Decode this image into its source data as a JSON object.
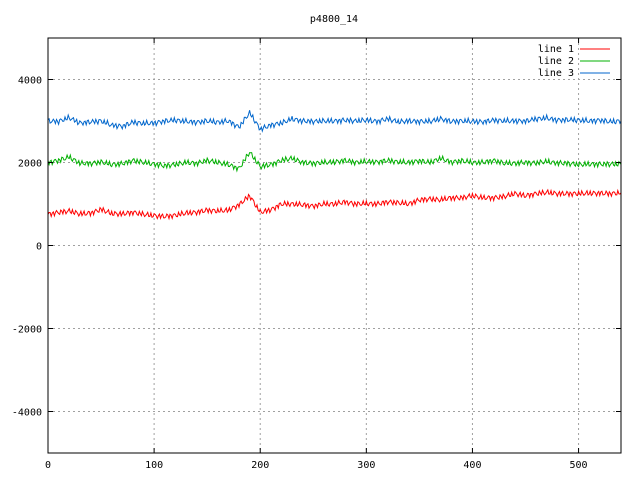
{
  "chart_data": {
    "type": "line",
    "title": "p4800_14",
    "xlabel": "",
    "ylabel": "",
    "xlim": [
      0,
      540
    ],
    "ylim": [
      -5000,
      5000
    ],
    "x_ticks": [
      0,
      100,
      200,
      300,
      400,
      500
    ],
    "x_tick_labels": [
      "0",
      "100",
      "200",
      "300",
      "400",
      "500"
    ],
    "y_ticks": [
      -4000,
      -2000,
      0,
      2000,
      4000
    ],
    "y_tick_labels": [
      "-4000",
      "-2000",
      "0",
      "2000",
      "4000"
    ],
    "grid": true,
    "legend_position": "top-right",
    "x_step": 10,
    "series": [
      {
        "name": "line 1",
        "color": "#ff0000",
        "values": [
          750,
          800,
          830,
          760,
          780,
          870,
          770,
          760,
          800,
          750,
          720,
          700,
          730,
          780,
          800,
          850,
          830,
          850,
          980,
          1200,
          800,
          860,
          1000,
          1000,
          980,
          950,
          1000,
          1000,
          1050,
          1000,
          1010,
          1000,
          1050,
          1030,
          1000,
          1100,
          1120,
          1100,
          1150,
          1150,
          1200,
          1150,
          1150,
          1180,
          1250,
          1200,
          1250,
          1280,
          1250,
          1250,
          1250,
          1260,
          1260,
          1250,
          1270
        ]
      },
      {
        "name": "line 2",
        "color": "#00b000",
        "values": [
          2000,
          2050,
          2130,
          1980,
          1980,
          2010,
          1950,
          1970,
          2050,
          2000,
          1960,
          1920,
          1950,
          2000,
          1980,
          2050,
          2000,
          1950,
          1850,
          2250,
          1900,
          1950,
          2050,
          2100,
          2000,
          1980,
          2000,
          2010,
          2050,
          2000,
          2020,
          2010,
          2050,
          2010,
          2000,
          2040,
          2000,
          2100,
          2010,
          2040,
          2000,
          2000,
          2050,
          1980,
          1980,
          2000,
          1990,
          2020,
          1990,
          1980,
          1950,
          1960,
          1960,
          1960,
          1960
        ]
      },
      {
        "name": "line 3",
        "color": "#0066cc",
        "values": [
          3000,
          2990,
          3080,
          2950,
          2980,
          3000,
          2900,
          2870,
          2970,
          2940,
          2950,
          3000,
          3020,
          2990,
          2970,
          3000,
          2970,
          3000,
          2850,
          3200,
          2800,
          2900,
          2950,
          3050,
          3000,
          2990,
          3000,
          3000,
          3020,
          3000,
          3020,
          2990,
          3050,
          2980,
          3000,
          2990,
          2990,
          3050,
          2990,
          3000,
          2990,
          2980,
          3020,
          3000,
          3000,
          3000,
          3050,
          3070,
          3020,
          3030,
          3020,
          3000,
          3020,
          2980,
          3000
        ]
      }
    ]
  }
}
